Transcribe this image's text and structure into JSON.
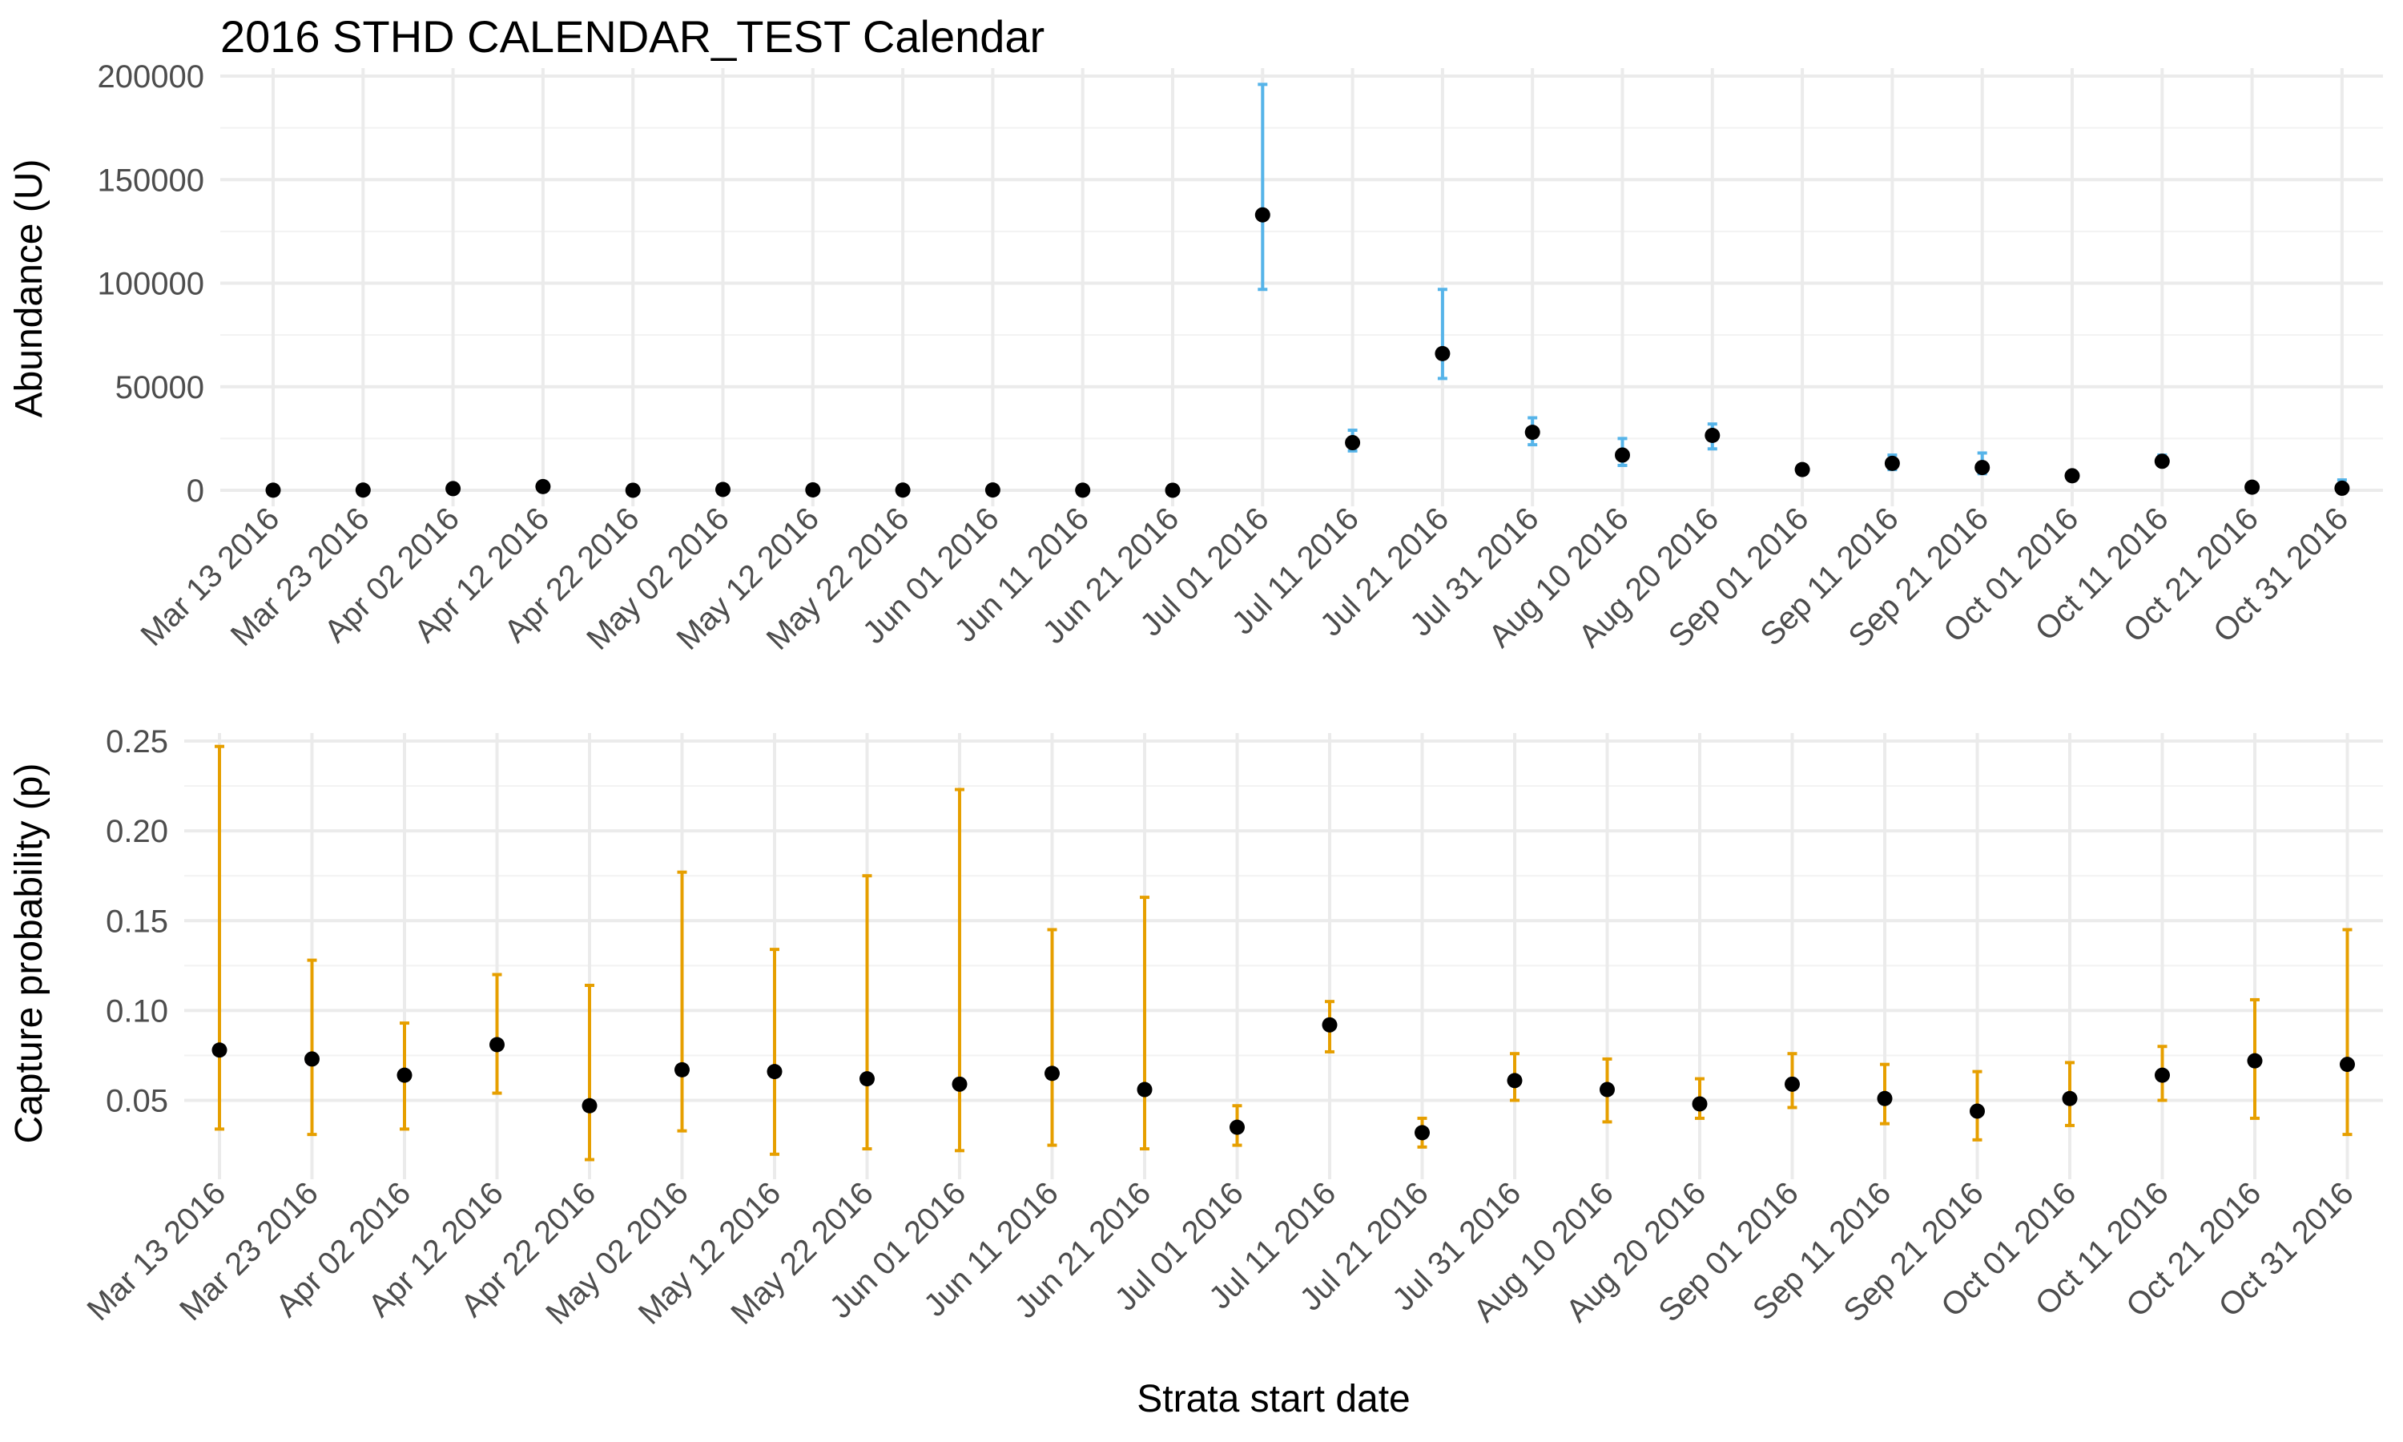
{
  "chart_data": {
    "title": "2016 STHD CALENDAR_TEST Calendar",
    "xlabel": "Strata start date",
    "error_colors": {
      "abundance": "#56B4E9",
      "capture": "#E69F00"
    },
    "panels": [
      {
        "type": "scatter",
        "ylabel": "Abundance (U)",
        "ylim": [
          0,
          200000
        ],
        "yticks": [
          0,
          50000,
          100000,
          150000,
          200000
        ],
        "ytick_labels": [
          "0",
          "50000",
          "100000",
          "150000",
          "200000"
        ],
        "x": [
          "Mar 13 2016",
          "Mar 23 2016",
          "Apr 02 2016",
          "Apr 12 2016",
          "Apr 22 2016",
          "May 02 2016",
          "May 12 2016",
          "May 22 2016",
          "Jun 01 2016",
          "Jun 11 2016",
          "Jun 21 2016",
          "Jul 01 2016",
          "Jul 11 2016",
          "Jul 21 2016",
          "Jul 31 2016",
          "Aug 10 2016",
          "Aug 20 2016",
          "Sep 01 2016",
          "Sep 11 2016",
          "Sep 21 2016",
          "Oct 01 2016",
          "Oct 11 2016",
          "Oct 21 2016",
          "Oct 31 2016"
        ],
        "values": [
          50,
          100,
          800,
          1800,
          20,
          400,
          200,
          100,
          150,
          50,
          20,
          133000,
          23000,
          66000,
          28000,
          17000,
          26500,
          10000,
          13000,
          11000,
          7000,
          14000,
          1500,
          1000
        ],
        "lower": [
          0,
          0,
          0,
          0,
          0,
          0,
          0,
          0,
          0,
          0,
          0,
          97000,
          19000,
          54000,
          22000,
          12000,
          20000,
          8000,
          10000,
          8000,
          5500,
          12000,
          800,
          500
        ],
        "upper": [
          200,
          400,
          2000,
          4000,
          100,
          1500,
          800,
          400,
          600,
          200,
          100,
          196000,
          29000,
          97000,
          35000,
          25000,
          32000,
          12000,
          17000,
          18000,
          9000,
          17000,
          2500,
          5000
        ]
      },
      {
        "type": "scatter",
        "ylabel": "Capture probability (p)",
        "ylim": [
          0.015,
          0.25
        ],
        "yticks": [
          0.05,
          0.1,
          0.15,
          0.2,
          0.25
        ],
        "ytick_labels": [
          "0.05",
          "0.10",
          "0.15",
          "0.20",
          "0.25"
        ],
        "x": [
          "Mar 13 2016",
          "Mar 23 2016",
          "Apr 02 2016",
          "Apr 12 2016",
          "Apr 22 2016",
          "May 02 2016",
          "May 12 2016",
          "May 22 2016",
          "Jun 01 2016",
          "Jun 11 2016",
          "Jun 21 2016",
          "Jul 01 2016",
          "Jul 11 2016",
          "Jul 21 2016",
          "Jul 31 2016",
          "Aug 10 2016",
          "Aug 20 2016",
          "Sep 01 2016",
          "Sep 11 2016",
          "Sep 21 2016",
          "Oct 01 2016",
          "Oct 11 2016",
          "Oct 21 2016",
          "Oct 31 2016"
        ],
        "values": [
          0.078,
          0.073,
          0.064,
          0.081,
          0.047,
          0.067,
          0.066,
          0.062,
          0.059,
          0.065,
          0.056,
          0.035,
          0.092,
          0.032,
          0.061,
          0.056,
          0.048,
          0.059,
          0.051,
          0.044,
          0.051,
          0.064,
          0.072,
          0.07
        ],
        "lower": [
          0.034,
          0.031,
          0.034,
          0.054,
          0.017,
          0.033,
          0.02,
          0.023,
          0.022,
          0.025,
          0.023,
          0.025,
          0.077,
          0.024,
          0.05,
          0.038,
          0.04,
          0.046,
          0.037,
          0.028,
          0.036,
          0.05,
          0.04,
          0.031
        ],
        "upper": [
          0.247,
          0.128,
          0.093,
          0.12,
          0.114,
          0.177,
          0.134,
          0.175,
          0.223,
          0.145,
          0.163,
          0.047,
          0.105,
          0.04,
          0.076,
          0.073,
          0.062,
          0.076,
          0.07,
          0.066,
          0.071,
          0.08,
          0.106,
          0.145
        ]
      }
    ]
  }
}
